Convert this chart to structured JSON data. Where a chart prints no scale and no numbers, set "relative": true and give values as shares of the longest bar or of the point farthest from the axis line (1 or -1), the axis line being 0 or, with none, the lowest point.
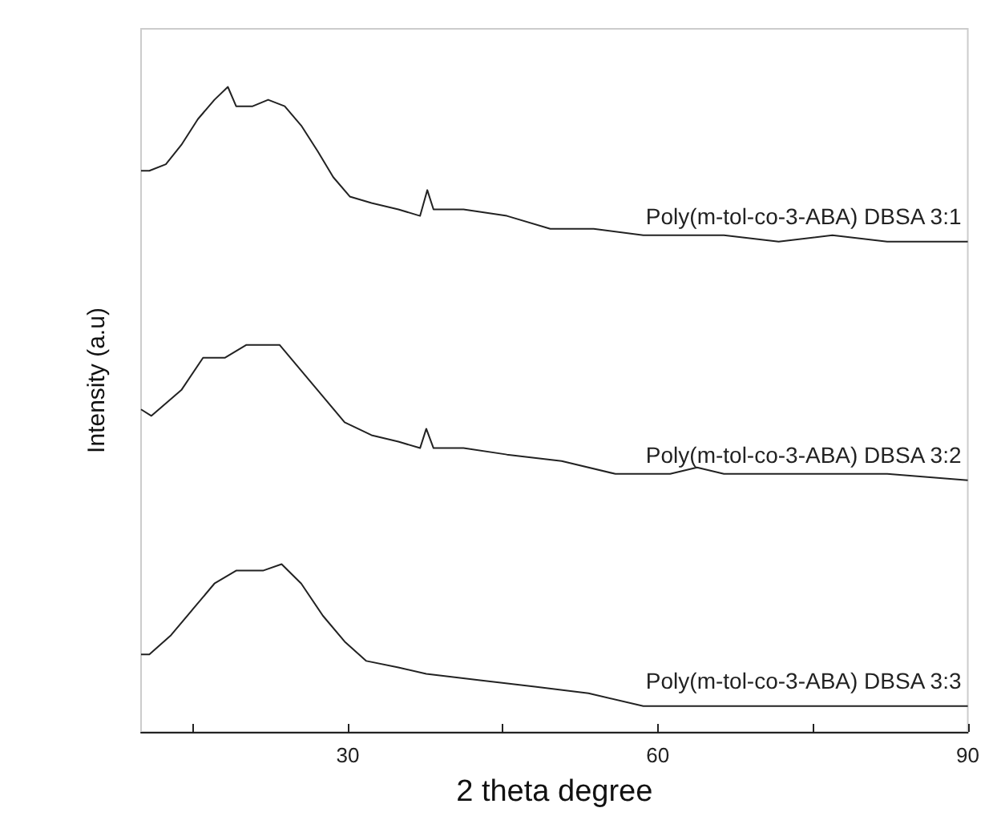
{
  "chart_data": {
    "type": "line",
    "relative": true,
    "xlabel": "2 theta degree",
    "ylabel": "Intensity (a.u)",
    "xlim": [
      10,
      90
    ],
    "xticks": [
      {
        "value": 15,
        "label": null
      },
      30,
      {
        "value": 45,
        "label": null
      },
      60,
      {
        "value": 75,
        "label": null
      },
      90
    ],
    "grid": false,
    "legend": false,
    "marker": "none",
    "line_style": "solid",
    "series": [
      {
        "name": "Poly(m-tol-co-3-ABA) DBSA 3:1",
        "color": "#222222",
        "x": [
          10,
          10.8,
          12.4,
          13.9,
          15.5,
          17.1,
          18.4,
          19.2,
          20.8,
          22.3,
          23.9,
          25.5,
          27.1,
          28.6,
          30.2,
          32.3,
          34.9,
          37.0,
          37.7,
          38.3,
          41.2,
          45.4,
          49.6,
          53.8,
          58.6,
          63.8,
          66.4,
          71.7,
          76.9,
          82.2,
          90
        ],
        "values": [
          0.87,
          0.87,
          0.88,
          0.91,
          0.95,
          0.98,
          1.0,
          0.97,
          0.97,
          0.98,
          0.97,
          0.94,
          0.9,
          0.86,
          0.83,
          0.82,
          0.81,
          0.8,
          0.84,
          0.81,
          0.81,
          0.8,
          0.78,
          0.78,
          0.77,
          0.77,
          0.77,
          0.76,
          0.77,
          0.76,
          0.76
        ]
      },
      {
        "name": "Poly(m-tol-co-3-ABA) DBSA 3:2",
        "color": "#222222",
        "x": [
          10,
          11.0,
          13.9,
          16.0,
          18.1,
          20.2,
          23.4,
          25.5,
          27.6,
          29.7,
          32.3,
          34.9,
          37.0,
          37.6,
          38.3,
          41.2,
          45.4,
          50.7,
          55.9,
          61.2,
          63.8,
          66.4,
          71.7,
          76.9,
          82.2,
          90
        ],
        "values": [
          0.5,
          0.49,
          0.53,
          0.58,
          0.58,
          0.6,
          0.6,
          0.56,
          0.52,
          0.48,
          0.46,
          0.45,
          0.44,
          0.47,
          0.44,
          0.44,
          0.43,
          0.42,
          0.4,
          0.4,
          0.41,
          0.4,
          0.4,
          0.4,
          0.4,
          0.39
        ]
      },
      {
        "name": "Poly(m-tol-co-3-ABA) DBSA 3:3",
        "color": "#222222",
        "x": [
          10,
          10.8,
          12.9,
          15.0,
          17.1,
          19.2,
          21.8,
          23.6,
          25.5,
          27.6,
          29.7,
          31.8,
          34.9,
          37.6,
          42.8,
          48.1,
          53.3,
          58.6,
          63.8,
          69.1,
          76.9,
          82.2,
          90
        ],
        "values": [
          0.12,
          0.12,
          0.15,
          0.19,
          0.23,
          0.25,
          0.25,
          0.26,
          0.23,
          0.18,
          0.14,
          0.11,
          0.1,
          0.09,
          0.08,
          0.07,
          0.06,
          0.04,
          0.04,
          0.04,
          0.04,
          0.04,
          0.04
        ]
      }
    ]
  }
}
